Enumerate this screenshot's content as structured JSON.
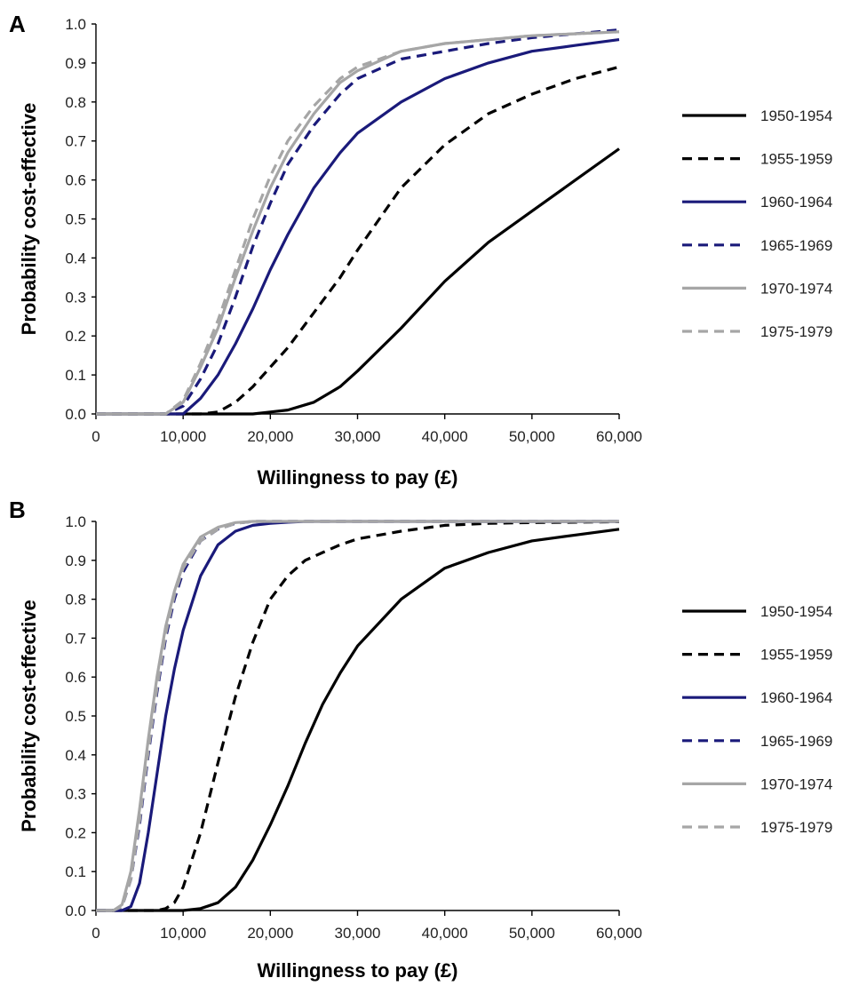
{
  "chart_data": [
    {
      "panel": "A",
      "type": "line",
      "xlabel": "Willingness to pay (£)",
      "ylabel": "Probability cost-effective",
      "xlim": [
        0,
        60000
      ],
      "ylim": [
        0,
        1.0
      ],
      "xticks": [
        "0",
        "10,000",
        "20,000",
        "30,000",
        "40,000",
        "50,000",
        "60,000"
      ],
      "yticks": [
        "0.0",
        "0.1",
        "0.2",
        "0.3",
        "0.4",
        "0.5",
        "0.6",
        "0.7",
        "0.8",
        "0.9",
        "1.0"
      ],
      "grid": false,
      "legend_position": "right",
      "x": [
        0,
        5000,
        8000,
        10000,
        12000,
        14000,
        16000,
        18000,
        20000,
        22000,
        25000,
        28000,
        30000,
        35000,
        40000,
        45000,
        50000,
        55000,
        60000
      ],
      "series": [
        {
          "name": "1950-1954",
          "color": "#000000",
          "dash": "solid",
          "values": [
            0,
            0,
            0,
            0,
            0,
            0,
            0,
            0,
            0.005,
            0.01,
            0.03,
            0.07,
            0.11,
            0.22,
            0.34,
            0.44,
            0.52,
            0.6,
            0.68
          ]
        },
        {
          "name": "1955-1959",
          "color": "#000000",
          "dash": "dashed",
          "values": [
            0,
            0,
            0,
            0,
            0,
            0.005,
            0.03,
            0.07,
            0.12,
            0.17,
            0.26,
            0.35,
            0.42,
            0.58,
            0.69,
            0.77,
            0.82,
            0.86,
            0.89
          ]
        },
        {
          "name": "1960-1964",
          "color": "#1a1a7a",
          "dash": "solid",
          "values": [
            0,
            0,
            0,
            0,
            0.04,
            0.1,
            0.18,
            0.27,
            0.37,
            0.46,
            0.58,
            0.67,
            0.72,
            0.8,
            0.86,
            0.9,
            0.93,
            0.945,
            0.96
          ]
        },
        {
          "name": "1965-1969",
          "color": "#1a1a7a",
          "dash": "dashed",
          "values": [
            0,
            0,
            0,
            0.02,
            0.09,
            0.18,
            0.3,
            0.43,
            0.54,
            0.64,
            0.74,
            0.82,
            0.86,
            0.91,
            0.93,
            0.95,
            0.965,
            0.975,
            0.985
          ]
        },
        {
          "name": "1970-1974",
          "color": "#a6a6a6",
          "dash": "solid",
          "values": [
            0,
            0,
            0,
            0.03,
            0.12,
            0.22,
            0.35,
            0.47,
            0.58,
            0.67,
            0.77,
            0.85,
            0.88,
            0.93,
            0.95,
            0.96,
            0.97,
            0.975,
            0.98
          ]
        },
        {
          "name": "1975-1979",
          "color": "#a6a6a6",
          "dash": "dashed",
          "values": [
            0,
            0,
            0,
            0.035,
            0.13,
            0.24,
            0.37,
            0.5,
            0.61,
            0.7,
            0.79,
            0.86,
            0.89,
            0.93,
            0.95,
            0.96,
            0.97,
            0.975,
            0.98
          ]
        }
      ]
    },
    {
      "panel": "B",
      "type": "line",
      "xlabel": "Willingness to pay (£)",
      "ylabel": "Probability cost-effective",
      "xlim": [
        0,
        60000
      ],
      "ylim": [
        0,
        1.0
      ],
      "xticks": [
        "0",
        "10,000",
        "20,000",
        "30,000",
        "40,000",
        "50,000",
        "60,000"
      ],
      "yticks": [
        "0.0",
        "0.1",
        "0.2",
        "0.3",
        "0.4",
        "0.5",
        "0.6",
        "0.7",
        "0.8",
        "0.9",
        "1.0"
      ],
      "grid": false,
      "legend_position": "right",
      "x": [
        0,
        2000,
        3000,
        4000,
        5000,
        6000,
        7000,
        8000,
        9000,
        10000,
        12000,
        14000,
        16000,
        18000,
        20000,
        22000,
        24000,
        26000,
        28000,
        30000,
        35000,
        40000,
        45000,
        50000,
        55000,
        60000
      ],
      "series": [
        {
          "name": "1950-1954",
          "color": "#000000",
          "dash": "solid",
          "values": [
            0,
            0,
            0,
            0,
            0,
            0,
            0,
            0,
            0,
            0,
            0.005,
            0.02,
            0.06,
            0.13,
            0.22,
            0.32,
            0.43,
            0.53,
            0.61,
            0.68,
            0.8,
            0.88,
            0.92,
            0.95,
            0.965,
            0.98
          ]
        },
        {
          "name": "1955-1959",
          "color": "#000000",
          "dash": "dashed",
          "values": [
            0,
            0,
            0,
            0,
            0,
            0,
            0,
            0.005,
            0.02,
            0.06,
            0.2,
            0.38,
            0.55,
            0.69,
            0.8,
            0.86,
            0.9,
            0.92,
            0.94,
            0.955,
            0.975,
            0.99,
            0.995,
            0.997,
            0.998,
            0.999
          ]
        },
        {
          "name": "1960-1964",
          "color": "#1a1a7a",
          "dash": "solid",
          "values": [
            0,
            0,
            0,
            0.01,
            0.07,
            0.2,
            0.35,
            0.5,
            0.62,
            0.72,
            0.86,
            0.94,
            0.975,
            0.99,
            0.995,
            0.998,
            1,
            1,
            1,
            1,
            1,
            1,
            1,
            1,
            1,
            1
          ]
        },
        {
          "name": "1965-1969",
          "color": "#1a1a7a",
          "dash": "dashed",
          "values": [
            0,
            0,
            0.01,
            0.08,
            0.22,
            0.4,
            0.56,
            0.7,
            0.8,
            0.87,
            0.95,
            0.98,
            0.995,
            1,
            1,
            1,
            1,
            1,
            1,
            1,
            1,
            1,
            1,
            1,
            1,
            1
          ]
        },
        {
          "name": "1970-1974",
          "color": "#a6a6a6",
          "dash": "solid",
          "values": [
            0,
            0,
            0.015,
            0.1,
            0.26,
            0.44,
            0.6,
            0.73,
            0.82,
            0.89,
            0.96,
            0.985,
            0.997,
            1,
            1,
            1,
            1,
            1,
            1,
            1,
            1,
            1,
            1,
            1,
            1,
            1
          ]
        },
        {
          "name": "1975-1979",
          "color": "#a6a6a6",
          "dash": "dashed",
          "values": [
            0,
            0,
            0.01,
            0.08,
            0.23,
            0.41,
            0.57,
            0.71,
            0.81,
            0.88,
            0.95,
            0.98,
            0.995,
            1,
            1,
            1,
            1,
            1,
            1,
            1,
            1,
            1,
            1,
            1,
            1,
            1
          ]
        }
      ]
    }
  ]
}
